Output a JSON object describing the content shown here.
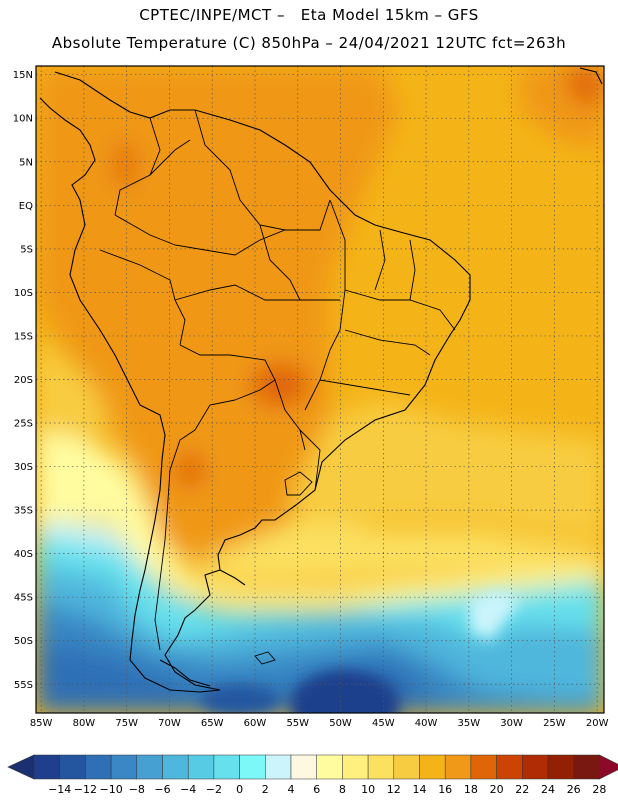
{
  "header": {
    "line1": "CPTEC/INPE/MCT –   Eta Model 15km – GFS",
    "line2": "Absolute Temperature (C) 850hPa – 24/04/2021 12UTC fct=263h"
  },
  "map": {
    "lat_labels": [
      "15N",
      "10N",
      "5N",
      "EQ",
      "5S",
      "10S",
      "15S",
      "20S",
      "25S",
      "30S",
      "35S",
      "40S",
      "45S",
      "50S",
      "55S"
    ],
    "lon_labels": [
      "85W",
      "80W",
      "75W",
      "70W",
      "65W",
      "60W",
      "55W",
      "50W",
      "45W",
      "40W",
      "35W",
      "30W",
      "25W",
      "20W"
    ]
  },
  "colorbar": {
    "labels": [
      "-14",
      "-12",
      "-10",
      "-8",
      "-6",
      "-4",
      "-2",
      "0",
      "2",
      "4",
      "6",
      "8",
      "10",
      "12",
      "14",
      "16",
      "18",
      "20",
      "22",
      "24",
      "26",
      "28"
    ],
    "colors": [
      "#1f3f8c",
      "#2456a0",
      "#2e6fb5",
      "#3987c4",
      "#46a0d2",
      "#4fb6dc",
      "#58cbe4",
      "#66e0ec",
      "#7df8f8",
      "#ccf4fc",
      "#fff8e0",
      "#fffca0",
      "#fff080",
      "#fce060",
      "#f8cc40",
      "#f4b418",
      "#f09818",
      "#e06408",
      "#cc4404",
      "#b02c04",
      "#942004",
      "#781810"
    ],
    "under_color": "#1a3070",
    "over_color": "#8c0a28"
  }
}
